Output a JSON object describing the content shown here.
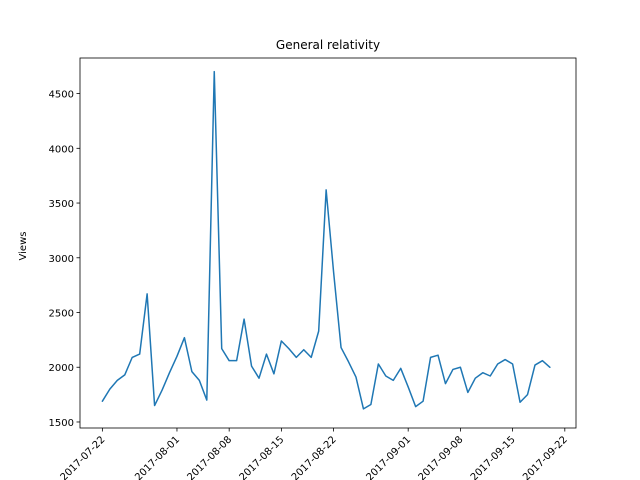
{
  "chart_data": {
    "type": "line",
    "title": "General relativity",
    "xlabel": "",
    "ylabel": "Views",
    "x_start": "2017-07-22",
    "x_tick_labels": [
      "2017-07-22",
      "2017-08-01",
      "2017-08-08",
      "2017-08-15",
      "2017-08-22",
      "2017-09-01",
      "2017-09-08",
      "2017-09-15",
      "2017-09-22"
    ],
    "x_tick_days": [
      0,
      10,
      17,
      24,
      31,
      41,
      48,
      55,
      62
    ],
    "y_ticks": [
      1500,
      2000,
      2500,
      3000,
      3500,
      4000,
      4500
    ],
    "xlim_days": [
      -3,
      63.5
    ],
    "ylim": [
      1445,
      4825
    ],
    "grid": false,
    "series": [
      {
        "name": "Views",
        "color": "#1f77b4",
        "values": [
          1690,
          1800,
          1880,
          1930,
          2090,
          2120,
          2670,
          1650,
          1790,
          1950,
          2100,
          2270,
          1960,
          1880,
          1700,
          4700,
          2170,
          2060,
          2060,
          2440,
          2010,
          1900,
          2120,
          1940,
          2240,
          2170,
          2090,
          2160,
          2090,
          2330,
          3620,
          2870,
          2180,
          2050,
          1910,
          1620,
          1660,
          2030,
          1920,
          1880,
          1990,
          1820,
          1640,
          1690,
          2090,
          2110,
          1850,
          1980,
          2000,
          1770,
          1900,
          1950,
          1920,
          2030,
          2070,
          2030,
          1680,
          1750,
          2020,
          2060,
          2000
        ]
      }
    ]
  }
}
